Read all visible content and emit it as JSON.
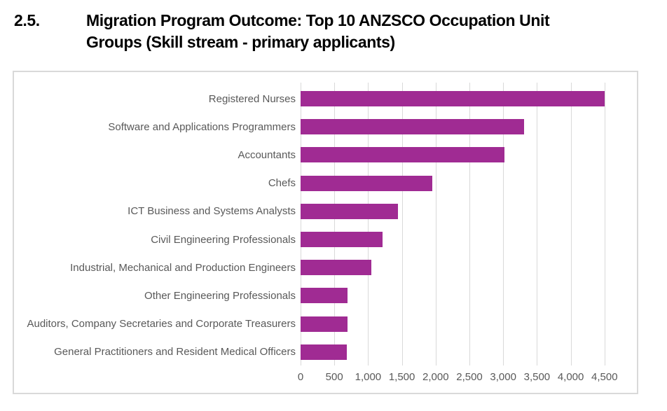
{
  "title": {
    "number": "2.5.",
    "line1": "Migration Program Outcome: Top 10 ANZSCO Occupation Unit",
    "line2": "Groups (Skill stream - primary applicants)"
  },
  "chart_data": {
    "type": "bar",
    "orientation": "horizontal",
    "title": "Migration Program Outcome: Top 10 ANZSCO Occupation Unit Groups (Skill stream - primary applicants)",
    "categories": [
      "Registered Nurses",
      "Software and Applications Programmers",
      "Accountants",
      "Chefs",
      "ICT Business and Systems Analysts",
      "Civil Engineering Professionals",
      "Industrial, Mechanical and Production Engineers",
      "Other Engineering Professionals",
      "Auditors, Company Secretaries and Corporate Treasurers",
      "General Practitioners and Resident Medical Officers"
    ],
    "values": [
      4500,
      3310,
      3020,
      1950,
      1440,
      1210,
      1050,
      700,
      700,
      680
    ],
    "xlabel": "",
    "ylabel": "",
    "xlim": [
      0,
      4500
    ],
    "x_tick_step": 500,
    "x_tick_labels": [
      "0",
      "500",
      "1,000",
      "1,500",
      "2,000",
      "2,500",
      "3,000",
      "3,500",
      "4,000",
      "4,500"
    ],
    "grid": true,
    "legend": "none",
    "bar_color": "#A02B93",
    "grid_color": "#D9D9D9",
    "axis_text_color": "#595959",
    "label_text_color": "#595959",
    "border_color": "#D9D9D9",
    "background_color": "#FFFFFF"
  }
}
